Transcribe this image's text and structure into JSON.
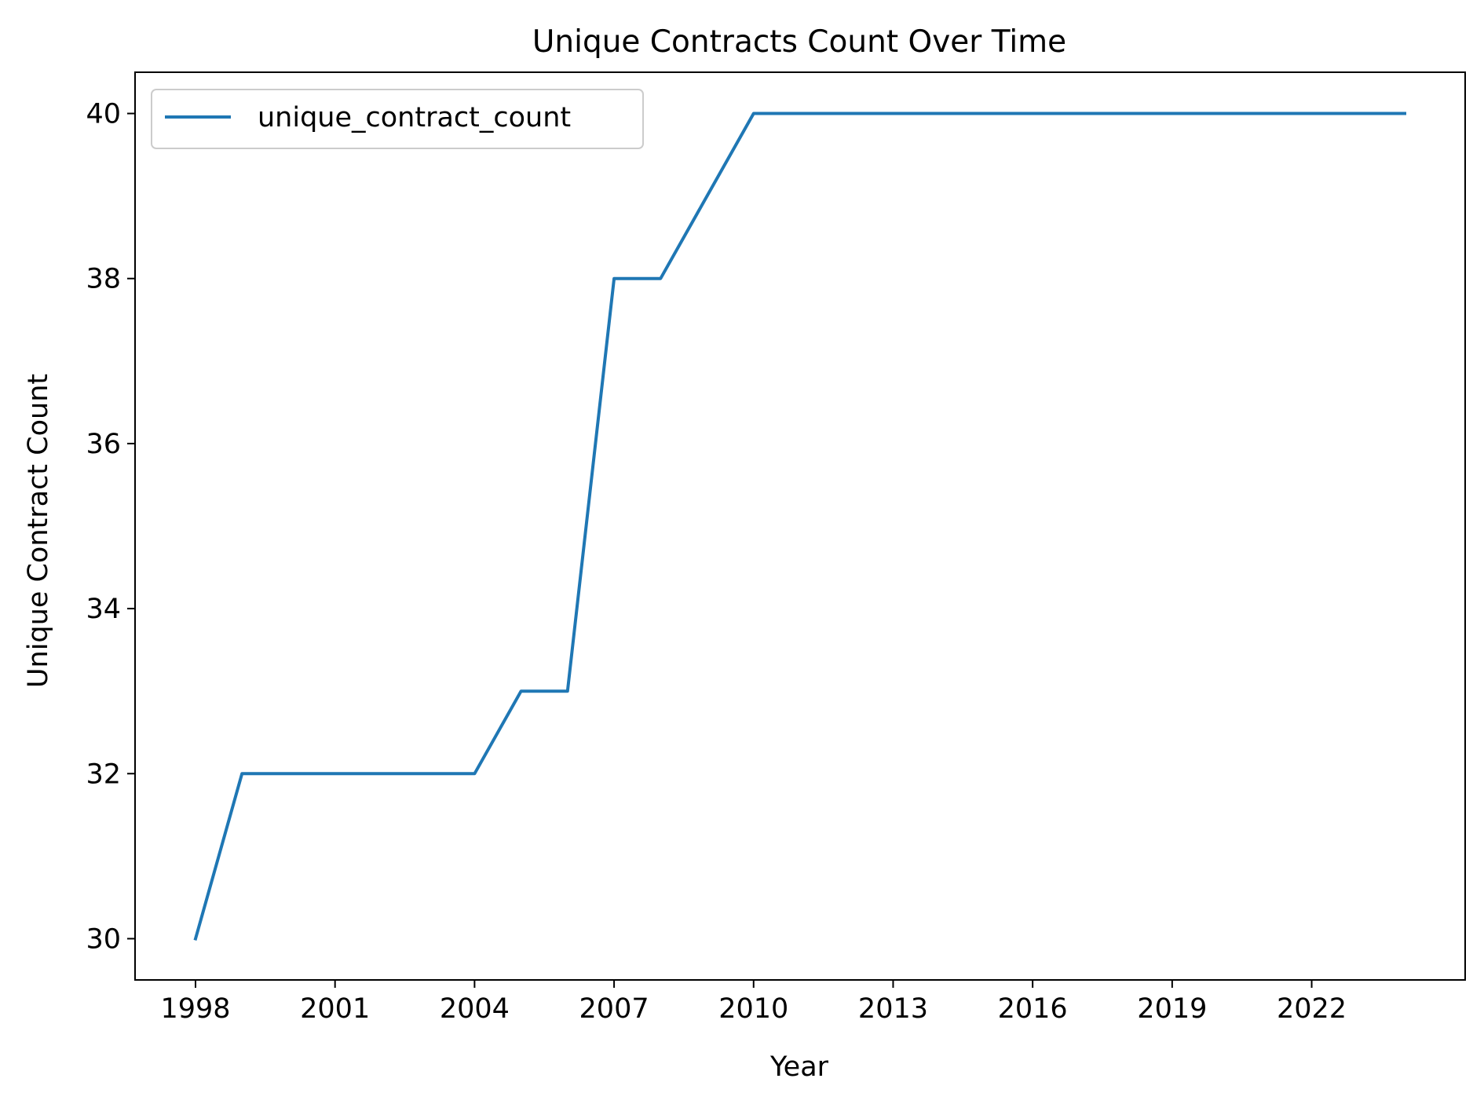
{
  "chart_data": {
    "type": "line",
    "title": "Unique Contracts Count Over Time",
    "xlabel": "Year",
    "ylabel": "Unique Contract Count",
    "xlim": [
      1996.7,
      2025.3
    ],
    "ylim": [
      29.5,
      40.5
    ],
    "x_ticks": [
      1998,
      2001,
      2004,
      2007,
      2010,
      2013,
      2016,
      2019,
      2022
    ],
    "y_ticks": [
      30,
      32,
      34,
      36,
      38,
      40
    ],
    "grid": false,
    "legend_position": "upper-left",
    "series": [
      {
        "name": "unique_contract_count",
        "color": "#1f77b4",
        "x": [
          1998,
          1999,
          2000,
          2001,
          2002,
          2003,
          2004,
          2005,
          2006,
          2007,
          2008,
          2009,
          2010,
          2011,
          2012,
          2013,
          2014,
          2015,
          2016,
          2017,
          2018,
          2019,
          2020,
          2021,
          2022,
          2023,
          2024
        ],
        "values": [
          30,
          32,
          32,
          32,
          32,
          32,
          32,
          33,
          33,
          38,
          38,
          39,
          40,
          40,
          40,
          40,
          40,
          40,
          40,
          40,
          40,
          40,
          40,
          40,
          40,
          40,
          40
        ]
      }
    ]
  }
}
